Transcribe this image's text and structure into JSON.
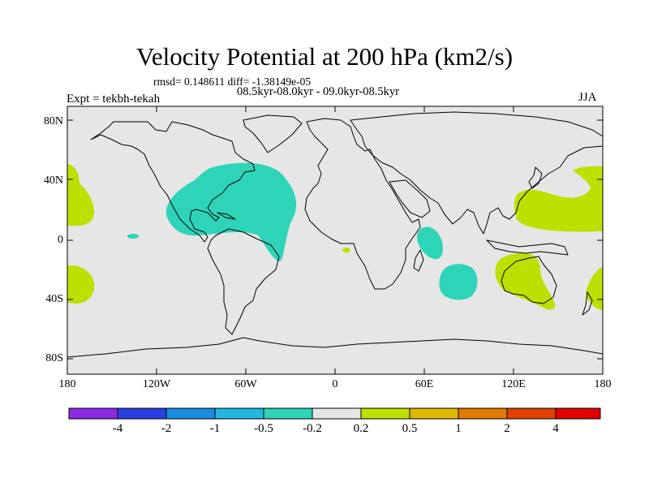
{
  "title": "Velocity Potential at 200 hPa (km2/s)",
  "stats_line": "rmsd= 0.148611 diff= -1.38149e-05",
  "period_line": "08.5kyr-08.0kyr - 09.0kyr-08.5kyr",
  "experiment_label": "Expt = tekbh-tekah",
  "season": "JJA",
  "map": {
    "projection": "cylindrical equidistant",
    "lon_range": [
      -180,
      180
    ],
    "lat_range": [
      -90,
      90
    ],
    "background_color": "#e6e6e6",
    "lat_ticks": [
      {
        "value": 80,
        "label": "80N"
      },
      {
        "value": 40,
        "label": "40N"
      },
      {
        "value": 0,
        "label": "0"
      },
      {
        "value": -40,
        "label": "40S"
      },
      {
        "value": -80,
        "label": "80S"
      }
    ],
    "lon_ticks": [
      {
        "value": -180,
        "label": "180"
      },
      {
        "value": -120,
        "label": "120W"
      },
      {
        "value": -60,
        "label": "60W"
      },
      {
        "value": 0,
        "label": "0"
      },
      {
        "value": 60,
        "label": "60E"
      },
      {
        "value": 120,
        "label": "120E"
      },
      {
        "value": 180,
        "label": "180"
      }
    ],
    "anomaly_regions": [
      {
        "name": "atlantic-americas-negative",
        "level": "-0.5 to -0.2",
        "color": "#2ed4b8",
        "center_lon": -55,
        "center_lat": 25
      },
      {
        "name": "central-pacific-negative",
        "level": "-0.5 to -0.2",
        "color": "#2ed4b8",
        "center_lon": -138,
        "center_lat": 2
      },
      {
        "name": "western-indian-ocean-negative",
        "level": "-0.5 to -0.2",
        "color": "#2ed4b8",
        "center_lon": 63,
        "center_lat": 1
      },
      {
        "name": "southern-indian-ocean-negative",
        "level": "-0.5 to -0.2",
        "color": "#2ed4b8",
        "center_lon": 86,
        "center_lat": -28
      },
      {
        "name": "west-pacific-positive",
        "level": "0.2 to 0.5",
        "color": "#bde000",
        "center_lon": 158,
        "center_lat": 30
      },
      {
        "name": "australia-positive",
        "level": "0.2 to 0.5",
        "color": "#bde000",
        "center_lon": 136,
        "center_lat": -30
      },
      {
        "name": "north-pacific-dateline-positive",
        "level": "0.2 to 0.5",
        "color": "#bde000",
        "center_lon": -172,
        "center_lat": 30
      },
      {
        "name": "south-pacific-dateline-positive",
        "level": "0.2 to 0.5",
        "color": "#bde000",
        "center_lon": -173,
        "center_lat": -32
      },
      {
        "name": "gulf-of-guinea-positive",
        "level": "0.2 to 0.5",
        "color": "#bde000",
        "center_lon": 8,
        "center_lat": -7
      }
    ]
  },
  "colorbar": {
    "colors": [
      "#8a2be2",
      "#2a3fe0",
      "#1a8ce0",
      "#20b8e0",
      "#2ed4b8",
      "#e6e6e6",
      "#bde000",
      "#e0b800",
      "#e07a00",
      "#e04000",
      "#e00000"
    ],
    "labels": [
      "-4",
      "-2",
      "-1",
      "-0.5",
      "-0.2",
      "0.2",
      "0.5",
      "1",
      "2",
      "4"
    ]
  }
}
